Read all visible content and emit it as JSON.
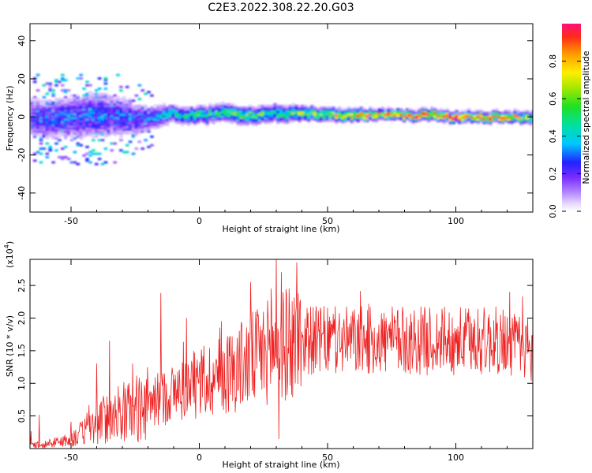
{
  "title": "C2E3.2022.308.22.20.G03",
  "colors": {
    "snr_line": "#ee2222",
    "plot_bg": "#ffffff",
    "axis": "#000000"
  },
  "chart_data": [
    {
      "type": "heatmap",
      "title": "C2E3.2022.308.22.20.G03",
      "xlabel": "Height of straight line (km)",
      "ylabel": "Frequency (Hz)",
      "xlim": [
        -66,
        130
      ],
      "ylim": [
        -50,
        49
      ],
      "xticks": [
        -50,
        0,
        50,
        100
      ],
      "xtick_labels": [
        "-50",
        "0",
        "50",
        "100"
      ],
      "yticks": [
        -40,
        -20,
        0,
        20,
        40
      ],
      "ytick_labels": [
        "-40",
        "-20",
        "0",
        "20",
        "40"
      ],
      "ridge": {
        "heights": [
          -66,
          -60,
          -50,
          -40,
          -30,
          -20,
          -10,
          0,
          10,
          20,
          30,
          40,
          50,
          60,
          70,
          80,
          90,
          100,
          110,
          120,
          130
        ],
        "frequency": [
          0,
          -1,
          0,
          1,
          0,
          -1,
          2,
          1,
          2,
          1,
          2,
          2,
          1,
          1,
          1,
          1,
          1,
          0,
          0,
          0,
          0
        ],
        "spread": [
          9,
          9,
          10,
          11,
          9,
          6,
          4,
          4,
          4,
          4,
          4,
          3.5,
          3,
          3,
          2.5,
          2.5,
          2.5,
          2.5,
          2.5,
          2.5,
          3
        ],
        "peak_amplitude": [
          0.25,
          0.3,
          0.3,
          0.3,
          0.3,
          0.3,
          0.45,
          0.5,
          0.55,
          0.55,
          0.55,
          0.6,
          0.7,
          0.8,
          0.85,
          0.9,
          0.92,
          0.95,
          0.95,
          0.92,
          0.55
        ]
      },
      "colorbar": {
        "label": "Normalized spectral amplitude",
        "range": [
          0,
          1
        ],
        "ticks": [
          0.0,
          0.2,
          0.4,
          0.6,
          0.8
        ],
        "tick_labels": [
          "0.0",
          "0.2",
          "0.4",
          "0.6",
          "0.8"
        ]
      }
    },
    {
      "type": "line",
      "xlabel": "Height of straight line (km)",
      "ylabel": "SNR (10 * v/v)",
      "scale_label": "(x10",
      "scale_exponent": "4",
      "xlim": [
        -66,
        130
      ],
      "ylim": [
        0,
        2.9
      ],
      "xticks": [
        -50,
        0,
        50,
        100
      ],
      "xtick_labels": [
        "-50",
        "0",
        "50",
        "100"
      ],
      "yticks": [
        0.5,
        1.0,
        1.5,
        2.0,
        2.5
      ],
      "ytick_labels": [
        "0.5",
        "1.0",
        "1.5",
        "2.0",
        "2.5"
      ],
      "trend": {
        "x": [
          -66,
          -60,
          -55,
          -50,
          -45,
          -40,
          -35,
          -30,
          -25,
          -20,
          -15,
          -10,
          -5,
          0,
          5,
          10,
          15,
          20,
          25,
          30,
          35,
          40,
          45,
          50,
          60,
          70,
          80,
          90,
          100,
          110,
          120,
          125,
          130
        ],
        "y": [
          0.05,
          0.07,
          0.1,
          0.15,
          0.25,
          0.38,
          0.5,
          0.55,
          0.6,
          0.68,
          0.78,
          0.85,
          0.92,
          1.0,
          1.08,
          1.15,
          1.25,
          1.35,
          1.45,
          1.55,
          1.6,
          1.65,
          1.66,
          1.65,
          1.65,
          1.65,
          1.65,
          1.65,
          1.65,
          1.65,
          1.65,
          1.55,
          1.45
        ]
      },
      "spikes": [
        {
          "x": -40,
          "y": 1.3
        },
        {
          "x": -35,
          "y": 1.65
        },
        {
          "x": -26,
          "y": 1.3
        },
        {
          "x": -15,
          "y": 2.38
        },
        {
          "x": -5,
          "y": 2.0
        },
        {
          "x": 8,
          "y": 1.85
        },
        {
          "x": 20,
          "y": 2.55
        },
        {
          "x": 23,
          "y": 2.05
        },
        {
          "x": 28,
          "y": 2.45
        },
        {
          "x": 30,
          "y": 2.95
        },
        {
          "x": 32,
          "y": 2.7
        },
        {
          "x": 35,
          "y": 2.45
        },
        {
          "x": 38,
          "y": 2.85
        },
        {
          "x": 42,
          "y": 2.15
        },
        {
          "x": 126,
          "y": 2.33
        },
        {
          "x": 128,
          "y": 2.0
        }
      ],
      "dips": [
        {
          "x": 31,
          "y": 0.15
        },
        {
          "x": 130,
          "y": 0.9
        }
      ]
    }
  ]
}
